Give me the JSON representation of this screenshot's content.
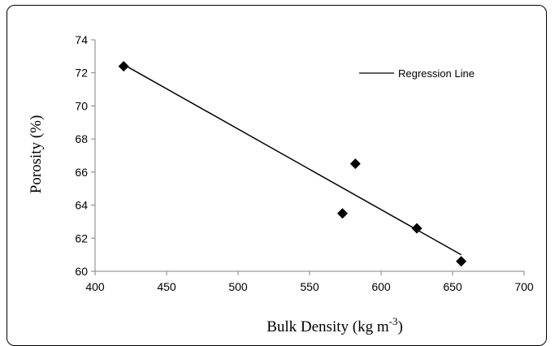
{
  "chart_data": {
    "type": "scatter",
    "title": "",
    "xlabel": "Bulk Density (kg m",
    "xlabel_sup": "-3",
    "xlabel_close": ")",
    "ylabel": "Porosity (%)",
    "xlim": [
      400,
      700
    ],
    "ylim": [
      60,
      74
    ],
    "xticks": [
      "400",
      "450",
      "500",
      "550",
      "600",
      "650",
      "700"
    ],
    "yticks": [
      "60",
      "62",
      "64",
      "66",
      "68",
      "70",
      "72",
      "74"
    ],
    "series": [
      {
        "points": [
          {
            "x": 420,
            "y": 72.4
          },
          {
            "x": 573,
            "y": 63.5
          },
          {
            "x": 582,
            "y": 66.5
          },
          {
            "x": 625,
            "y": 62.6
          },
          {
            "x": 656,
            "y": 60.6
          }
        ]
      }
    ],
    "regression": {
      "name": "Regression Line",
      "x": [
        420,
        656
      ],
      "y": [
        72.5,
        61.0
      ]
    },
    "grid": false,
    "legend_position": "top-right",
    "colors": {
      "marker": "#000000",
      "line": "#000000"
    }
  }
}
